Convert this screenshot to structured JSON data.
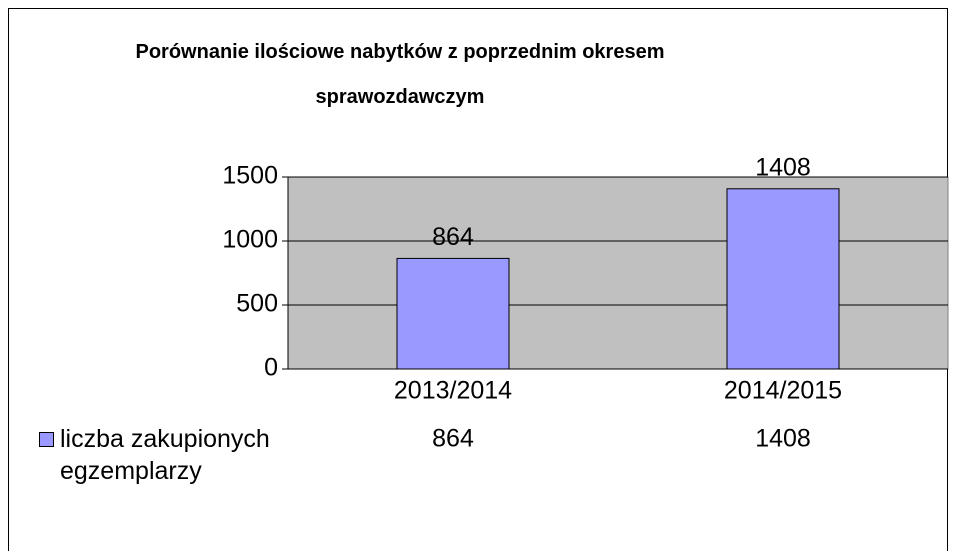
{
  "chart_data": {
    "type": "bar",
    "title": "Porównanie ilościowe nabytków z poprzednim okresem sprawozdawczym",
    "categories": [
      "2013/2014",
      "2014/2015"
    ],
    "series": [
      {
        "name": "liczba zakupionych egzemplarzy",
        "color": "#9999ff",
        "values": [
          864,
          1408
        ]
      }
    ],
    "ylim": [
      0,
      1500
    ],
    "yticks": [
      0,
      500,
      1000,
      1500
    ],
    "grid": true,
    "legend": "bottom-left",
    "data_table": true
  }
}
